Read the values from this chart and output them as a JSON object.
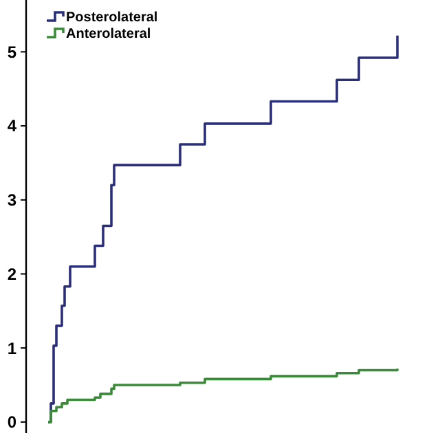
{
  "chart_data": {
    "type": "step",
    "categories": [
      null,
      null,
      null,
      null,
      null,
      null,
      null,
      null,
      null,
      null,
      null,
      null,
      null,
      null,
      null,
      null,
      null,
      null,
      null,
      null,
      null,
      null,
      null,
      null,
      null,
      null,
      null,
      null,
      null,
      null,
      null,
      null,
      null,
      null,
      null,
      null,
      null,
      null,
      null,
      null,
      null,
      null,
      null,
      null,
      null,
      null,
      null,
      null,
      null,
      null,
      null,
      null,
      null,
      null,
      null,
      null,
      null,
      null,
      null,
      null,
      null,
      null,
      null,
      null,
      null,
      null,
      null,
      null,
      null,
      null,
      null,
      null,
      null,
      null,
      null,
      null,
      null,
      null,
      null,
      null,
      null,
      null,
      null,
      null,
      null,
      null,
      null,
      null,
      null,
      null,
      null,
      null,
      null,
      null,
      null,
      null,
      null,
      null,
      null,
      null,
      null,
      null,
      null,
      null,
      null,
      null,
      null,
      null,
      null,
      null,
      null,
      null,
      null,
      null,
      null,
      null,
      null,
      null,
      null,
      null,
      null,
      null,
      null,
      null,
      null,
      null,
      null,
      null
    ],
    "series": [
      {
        "name": "Posterolateral",
        "color": "#2b2f7a",
        "values": [
          0,
          0.25,
          1.03,
          1.3,
          1.3,
          1.57,
          1.83,
          1.83,
          2.1,
          2.1,
          2.1,
          2.1,
          2.1,
          2.1,
          2.1,
          2.1,
          2.1,
          2.38,
          2.38,
          2.38,
          2.65,
          2.65,
          2.65,
          3.2,
          3.47,
          3.47,
          3.47,
          3.47,
          3.47,
          3.47,
          3.47,
          3.47,
          3.47,
          3.47,
          3.47,
          3.47,
          3.47,
          3.47,
          3.47,
          3.47,
          3.47,
          3.47,
          3.47,
          3.47,
          3.47,
          3.47,
          3.47,
          3.47,
          3.75,
          3.75,
          3.75,
          3.75,
          3.75,
          3.75,
          3.75,
          3.75,
          3.75,
          4.03,
          4.03,
          4.03,
          4.03,
          4.03,
          4.03,
          4.03,
          4.03,
          4.03,
          4.03,
          4.03,
          4.03,
          4.03,
          4.03,
          4.03,
          4.03,
          4.03,
          4.03,
          4.03,
          4.03,
          4.03,
          4.03,
          4.03,
          4.03,
          4.33,
          4.33,
          4.33,
          4.33,
          4.33,
          4.33,
          4.33,
          4.33,
          4.33,
          4.33,
          4.33,
          4.33,
          4.33,
          4.33,
          4.33,
          4.33,
          4.33,
          4.33,
          4.33,
          4.33,
          4.33,
          4.33,
          4.33,
          4.33,
          4.62,
          4.62,
          4.62,
          4.62,
          4.62,
          4.62,
          4.62,
          4.62,
          4.92,
          4.92,
          4.92,
          4.92,
          4.92,
          4.92,
          4.92,
          4.92,
          4.92,
          4.92,
          4.92,
          4.92,
          4.92,
          4.92,
          5.22
        ]
      },
      {
        "name": "Anterolateral",
        "color": "#3a8a3a",
        "values": [
          0,
          0.15,
          0.15,
          0.2,
          0.2,
          0.25,
          0.25,
          0.3,
          0.3,
          0.3,
          0.3,
          0.3,
          0.3,
          0.3,
          0.3,
          0.3,
          0.3,
          0.33,
          0.33,
          0.38,
          0.38,
          0.38,
          0.38,
          0.45,
          0.5,
          0.5,
          0.5,
          0.5,
          0.5,
          0.5,
          0.5,
          0.5,
          0.5,
          0.5,
          0.5,
          0.5,
          0.5,
          0.5,
          0.5,
          0.5,
          0.5,
          0.5,
          0.5,
          0.5,
          0.5,
          0.5,
          0.5,
          0.5,
          0.53,
          0.53,
          0.53,
          0.53,
          0.53,
          0.53,
          0.53,
          0.53,
          0.53,
          0.58,
          0.58,
          0.58,
          0.58,
          0.58,
          0.58,
          0.58,
          0.58,
          0.58,
          0.58,
          0.58,
          0.58,
          0.58,
          0.58,
          0.58,
          0.58,
          0.58,
          0.58,
          0.58,
          0.58,
          0.58,
          0.58,
          0.58,
          0.58,
          0.62,
          0.62,
          0.62,
          0.62,
          0.62,
          0.62,
          0.62,
          0.62,
          0.62,
          0.62,
          0.62,
          0.62,
          0.62,
          0.62,
          0.62,
          0.62,
          0.62,
          0.62,
          0.62,
          0.62,
          0.62,
          0.62,
          0.62,
          0.62,
          0.66,
          0.66,
          0.66,
          0.66,
          0.66,
          0.66,
          0.66,
          0.66,
          0.7,
          0.7,
          0.7,
          0.7,
          0.7,
          0.7,
          0.7,
          0.7,
          0.7,
          0.7,
          0.7,
          0.7,
          0.7,
          0.7,
          0.72
        ]
      }
    ],
    "ylim": [
      -0.15,
      5.7
    ],
    "yticks": [
      0,
      1,
      2,
      3,
      4,
      5
    ],
    "tick_labels": "y",
    "legend": "top left"
  }
}
